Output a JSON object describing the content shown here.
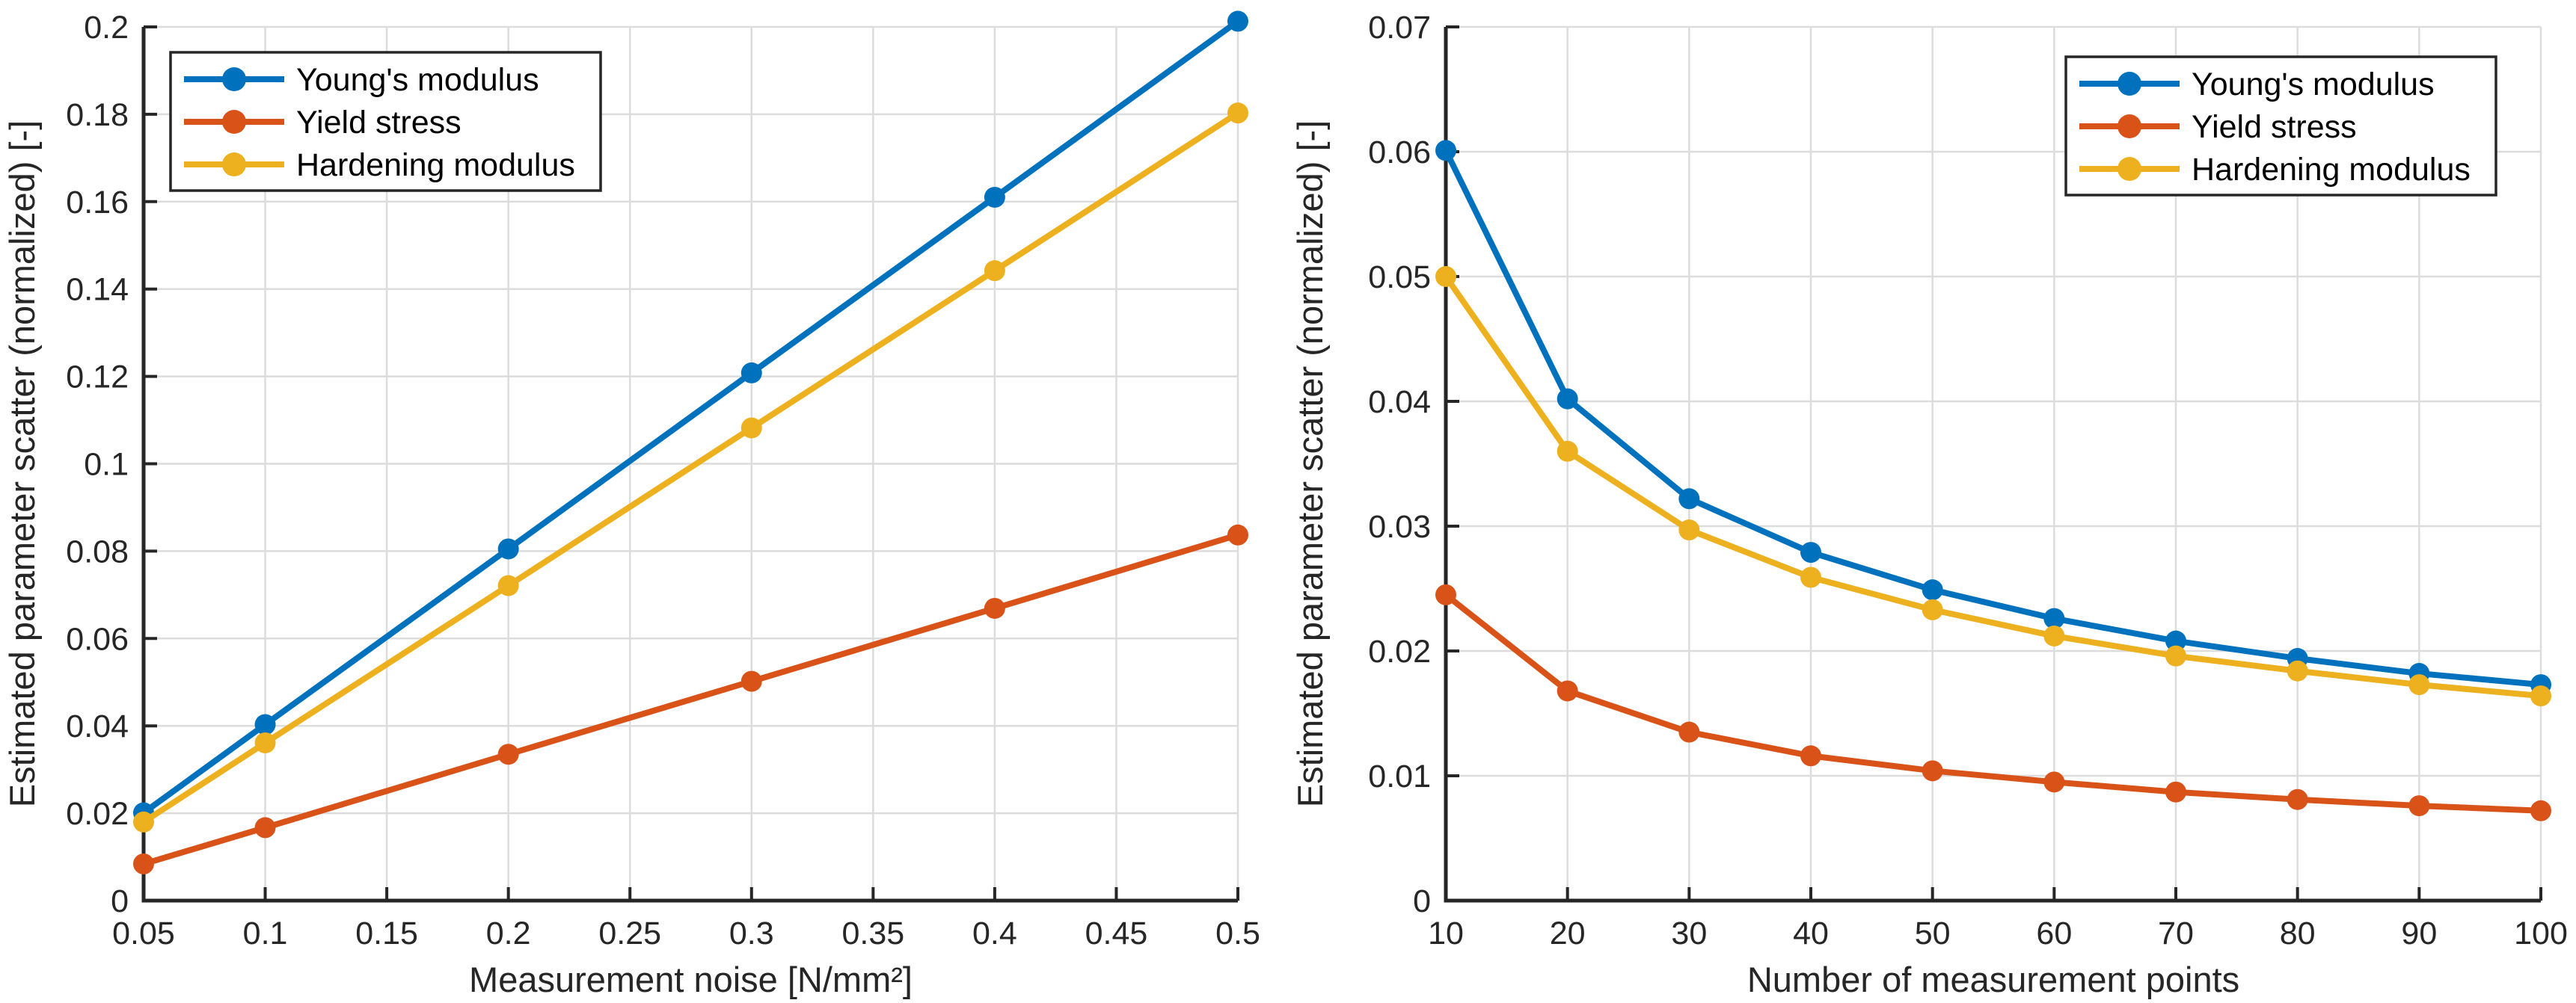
{
  "figure": {
    "background": "#ffffff"
  },
  "style_colors": {
    "axis": "#262626",
    "tick_label": "#262626",
    "grid": "#DCDCDC",
    "legend_border": "#262626",
    "legend_background": "#ffffff"
  },
  "chart_data": [
    {
      "type": "line",
      "title": "",
      "xlabel": "Measurement noise [N/mm²]",
      "ylabel": "Estimated parameter scatter (normalized) [-]",
      "xlim": [
        0.05,
        0.5
      ],
      "ylim": [
        0,
        0.2
      ],
      "grid": true,
      "legend_position": "top-left",
      "xticks": [
        0.05,
        0.1,
        0.15,
        0.2,
        0.25,
        0.3,
        0.35,
        0.4,
        0.45,
        0.5
      ],
      "xtick_labels": [
        "0.05",
        "0.1",
        "0.15",
        "0.2",
        "0.25",
        "0.3",
        "0.35",
        "0.4",
        "0.45",
        "0.5"
      ],
      "yticks": [
        0,
        0.02,
        0.04,
        0.06,
        0.08,
        0.1,
        0.12,
        0.14,
        0.16,
        0.18,
        0.2
      ],
      "ytick_labels": [
        "0",
        "0.02",
        "0.04",
        "0.06",
        "0.08",
        "0.1",
        "0.12",
        "0.14",
        "0.16",
        "0.18",
        "0.2"
      ],
      "x": [
        0.05,
        0.1,
        0.2,
        0.3,
        0.4,
        0.5
      ],
      "series": [
        {
          "name": "Young's modulus",
          "color": "#0072BD",
          "marker": "circle",
          "values": [
            0.0201,
            0.0403,
            0.0805,
            0.1208,
            0.161,
            0.2013
          ]
        },
        {
          "name": "Yield stress",
          "color": "#D95319",
          "marker": "circle",
          "values": [
            0.0084,
            0.0167,
            0.0335,
            0.0502,
            0.0669,
            0.0837
          ]
        },
        {
          "name": "Hardening modulus",
          "color": "#EDB120",
          "marker": "circle",
          "values": [
            0.018,
            0.0361,
            0.0721,
            0.1082,
            0.1442,
            0.1803
          ]
        }
      ]
    },
    {
      "type": "line",
      "title": "",
      "xlabel": "Number of measurement points",
      "ylabel": "Estimated parameter scatter (normalized) [-]",
      "xlim": [
        10,
        100
      ],
      "ylim": [
        0,
        0.07
      ],
      "grid": true,
      "legend_position": "top-right",
      "xticks": [
        10,
        20,
        30,
        40,
        50,
        60,
        70,
        80,
        90,
        100
      ],
      "xtick_labels": [
        "10",
        "20",
        "30",
        "40",
        "50",
        "60",
        "70",
        "80",
        "90",
        "100"
      ],
      "yticks": [
        0,
        0.01,
        0.02,
        0.03,
        0.04,
        0.05,
        0.06,
        0.07
      ],
      "ytick_labels": [
        "0",
        "0.01",
        "0.02",
        "0.03",
        "0.04",
        "0.05",
        "0.06",
        "0.07"
      ],
      "x": [
        10,
        20,
        30,
        40,
        50,
        60,
        70,
        80,
        90,
        100
      ],
      "series": [
        {
          "name": "Young's modulus",
          "color": "#0072BD",
          "marker": "circle",
          "values": [
            0.0601,
            0.0402,
            0.0322,
            0.0279,
            0.0249,
            0.0226,
            0.0208,
            0.0194,
            0.0182,
            0.0173
          ]
        },
        {
          "name": "Yield stress",
          "color": "#D95319",
          "marker": "circle",
          "values": [
            0.0245,
            0.0168,
            0.0135,
            0.0116,
            0.0104,
            0.0095,
            0.0087,
            0.0081,
            0.0076,
            0.0072
          ]
        },
        {
          "name": "Hardening modulus",
          "color": "#EDB120",
          "marker": "circle",
          "values": [
            0.05,
            0.036,
            0.0297,
            0.0259,
            0.0233,
            0.0212,
            0.0196,
            0.0184,
            0.0173,
            0.0164
          ]
        }
      ]
    }
  ]
}
